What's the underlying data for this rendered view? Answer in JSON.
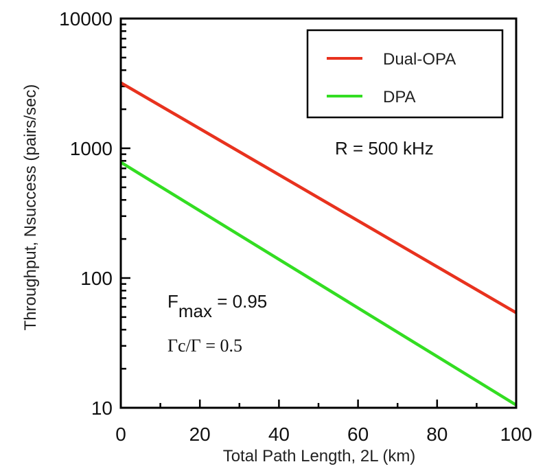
{
  "chart_data": {
    "type": "line",
    "title": "",
    "xlabel": "Total Path Length, 2L (km)",
    "ylabel": "Throughput, Nsuccess (pairs/sec)",
    "xlim": [
      0,
      100
    ],
    "ylim": [
      10,
      10000
    ],
    "yscale": "log",
    "xticks": [
      "0",
      "20",
      "40",
      "60",
      "80",
      "100"
    ],
    "yticks": [
      "10",
      "100",
      "1000",
      "10000"
    ],
    "grid": false,
    "legend_position": "top-right",
    "series": [
      {
        "name": "Dual-OPA",
        "color": "#e8321e",
        "x": [
          0,
          100
        ],
        "y": [
          3200,
          54
        ]
      },
      {
        "name": "DPA",
        "color": "#33dd22",
        "x": [
          0,
          100
        ],
        "y": [
          780,
          10.5
        ]
      }
    ],
    "annotations": {
      "rate": "R = 500 kHz",
      "fmax_base": "F",
      "fmax_sub": "max",
      "fmax_value": " = 0.95",
      "gamma_ratio": "Γc/Γ = 0.5"
    }
  }
}
